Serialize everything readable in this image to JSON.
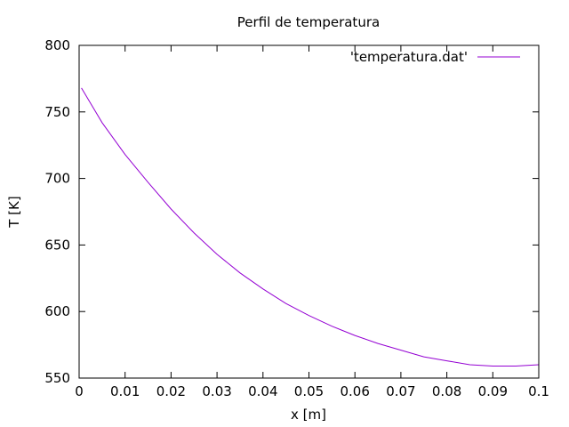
{
  "chart_data": {
    "type": "line",
    "title": "Perfil de temperatura",
    "xlabel": "x [m]",
    "ylabel": "T [K]",
    "xlim": [
      0,
      0.1
    ],
    "ylim": [
      550,
      800
    ],
    "xticks": [
      0,
      0.01,
      0.02,
      0.03,
      0.04,
      0.05,
      0.06,
      0.07,
      0.08,
      0.09,
      0.1
    ],
    "xtick_labels": [
      "0",
      "0.01",
      "0.02",
      "0.03",
      "0.04",
      "0.05",
      "0.06",
      "0.07",
      "0.08",
      "0.09",
      "0.1"
    ],
    "yticks": [
      550,
      600,
      650,
      700,
      750,
      800
    ],
    "ytick_labels": [
      "550",
      "600",
      "650",
      "700",
      "750",
      "800"
    ],
    "grid": false,
    "legend_position": "top-right",
    "series": [
      {
        "name": "'temperatura.dat'",
        "color": "#9400d3",
        "x": [
          0.0005,
          0.005,
          0.01,
          0.015,
          0.02,
          0.025,
          0.03,
          0.035,
          0.04,
          0.045,
          0.05,
          0.055,
          0.06,
          0.065,
          0.07,
          0.075,
          0.08,
          0.085,
          0.09,
          0.095,
          0.1
        ],
        "y": [
          768,
          742,
          718,
          697,
          677,
          659,
          643,
          629,
          617,
          606,
          597,
          589,
          582,
          576,
          571,
          566,
          563,
          560,
          559,
          559,
          560
        ]
      }
    ]
  }
}
